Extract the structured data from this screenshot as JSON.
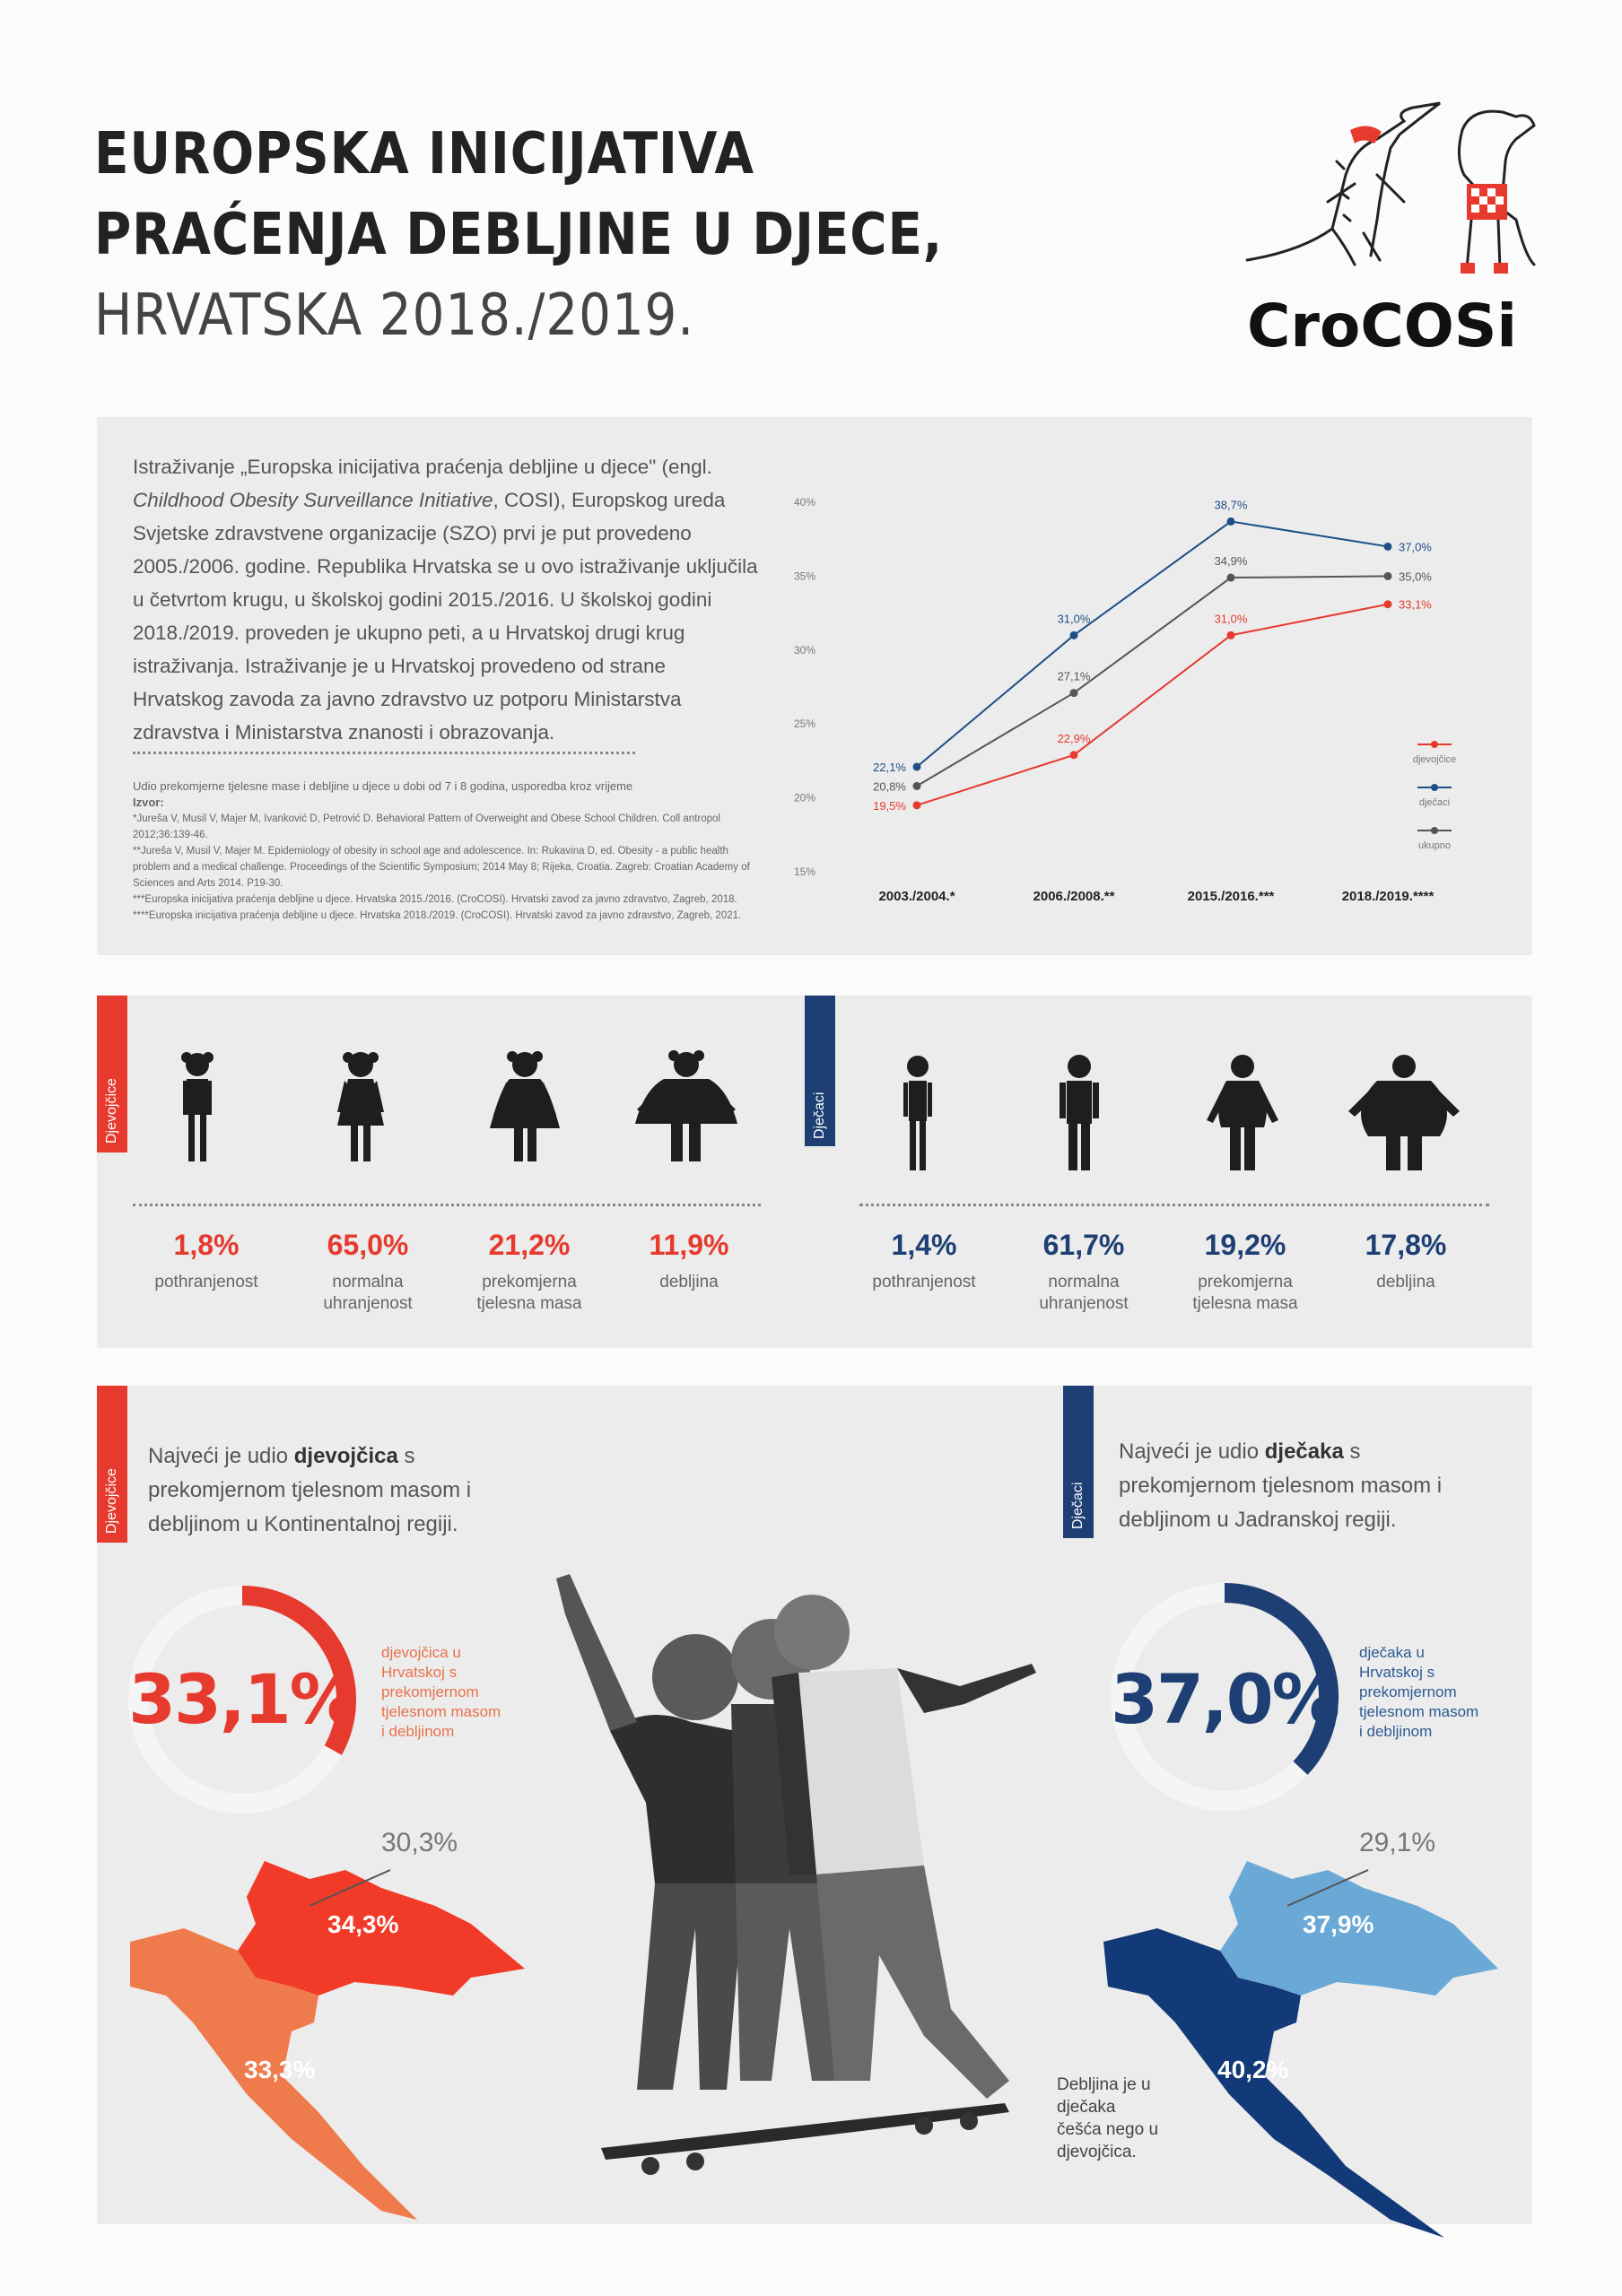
{
  "header": {
    "title_line1": "EUROPSKA INICIJATIVA",
    "title_line2": "PRAĆENJA DEBLJINE U DJECE,",
    "title_line3": "HRVATSKA 2018./2019.",
    "brand": "CroCOSi"
  },
  "intro": {
    "text_a": "Istraživanje „Europska inicijativa praćenja debljine u djece\" (engl. ",
    "text_em": "Childhood Obesity Surveillance Initiative",
    "text_b": ", COSI), Europskog ureda Svjetske zdravstvene organizacije (SZO) prvi je put provedeno 2005./2006. godine. Republika Hrvatska se u ovo istraživanje uključila u četvrtom krugu, u školskoj godini 2015./2016. U školskoj godini 2018./2019. proveden je ukupno peti, a u Hrvatskoj drugi krug istraživanja. Istraživanje je u Hrvatskoj provedeno od strane Hrvatskog zavoda za javno zdravstvo uz potporu Ministarstva zdravstva i Ministarstva znanosti i obrazovanja.",
    "caption": "Udio prekomjerne tjelesne mase i debljine u djece u dobi od 7 i 8 godina, usporedba kroz vrijeme",
    "source_label": "Izvor:",
    "ref1": "*Jureša V, Musil V, Majer M, Ivanković D, Petrović D. Behavioral Pattern of Overweight and Obese School Children. Coll antropol 2012;36:139-46.",
    "ref2": "**Jureša V, Musil V, Majer M. Epidemiology of obesity in school age and adolescence. In: Rukavina D, ed. Obesity - a public health problem and a medical challenge. Proceedings of the Scientific Symposium; 2014 May 8; Rijeka, Croatia. Zagreb: Croatian Academy of Sciences and Arts 2014. P19-30.",
    "ref3": "***Europska inicijativa praćenja debljine u djece. Hrvatska 2015./2016. (CroCOSI). Hrvatski zavod za javno zdravstvo, Zagreb, 2018.",
    "ref4": "****Europska inicijativa praćenja debljine u djece. Hrvatska 2018./2019. (CroCOSI). Hrvatski zavod za javno zdravstvo, Zagreb, 2021."
  },
  "chart_data": {
    "type": "line",
    "categories": [
      "2003./2004.*",
      "2006./2008.**",
      "2015./2016.***",
      "2018./2019.****"
    ],
    "y_ticks": [
      "40%",
      "35%",
      "30%",
      "25%",
      "20%",
      "15%"
    ],
    "ylim": [
      15,
      40
    ],
    "series": [
      {
        "name": "djevojčice",
        "color": "#e63a2e",
        "values": [
          19.5,
          22.9,
          31.0,
          33.1
        ],
        "labels": [
          "19,5%",
          "22,9%",
          "31,0%",
          "33,1%"
        ]
      },
      {
        "name": "dječaci",
        "color": "#1d4f86",
        "values": [
          22.1,
          31.0,
          38.7,
          37.0
        ],
        "labels": [
          "22,1%",
          "31,0%",
          "38,7%",
          "37,0%"
        ]
      },
      {
        "name": "ukupno",
        "color": "#555555",
        "values": [
          20.8,
          27.1,
          34.9,
          35.0
        ],
        "labels": [
          "20,8%",
          "27,1%",
          "34,9%",
          "35,0%"
        ]
      }
    ],
    "legend_placement": "right"
  },
  "girls": {
    "tag": "Djevojčice",
    "stats": [
      {
        "value": "1,8%",
        "label": "pothranjenost"
      },
      {
        "value": "65,0%",
        "label": "normalna uhranjenost"
      },
      {
        "value": "21,2%",
        "label": "prekomjerna tjelesna masa"
      },
      {
        "value": "11,9%",
        "label": "debljina"
      }
    ]
  },
  "boys": {
    "tag": "Dječaci",
    "stats": [
      {
        "value": "1,4%",
        "label": "pothranjenost"
      },
      {
        "value": "61,7%",
        "label": "normalna uhranjenost"
      },
      {
        "value": "19,2%",
        "label": "prekomjerna tjelesna masa"
      },
      {
        "value": "17,8%",
        "label": "debljina"
      }
    ]
  },
  "regions": {
    "girls_tag": "Djevojčice",
    "girls_lead_a": "Najveći je udio ",
    "girls_lead_b": "djevojčica",
    "girls_lead_c": " s prekomjernom tjelesnom masom i debljinom u Kontinentalnoj regiji.",
    "girls_big": "33,1%",
    "girls_big_fraction": 0.331,
    "girls_side": "djevojčica u Hrvatskoj s prekomjernom tjelesnom masom i debljinom",
    "girls_map_gray": "30,3%",
    "girls_map_cont": "34,3%",
    "girls_map_adr": "33,3%",
    "boys_tag": "Dječaci",
    "boys_lead_a": "Najveći je udio ",
    "boys_lead_b": "dječaka",
    "boys_lead_c": " s prekomjernom tjelesnom masom i debljinom u Jadranskoj regiji.",
    "boys_big": "37,0%",
    "boys_big_fraction": 0.37,
    "boys_side": "dječaka u Hrvatskoj s prekomjernom tjelesnom masom i debljinom",
    "boys_map_gray": "29,1%",
    "boys_map_cont": "37,9%",
    "boys_map_adr": "40,2%",
    "note": "Debljina je u dječaka češća nego u djevojčica."
  },
  "colors": {
    "red": "#e63a2e",
    "blue": "#1d3f73",
    "orange": "#ef7a4c",
    "lightblue": "#6aa9d6",
    "navy": "#123a78"
  }
}
